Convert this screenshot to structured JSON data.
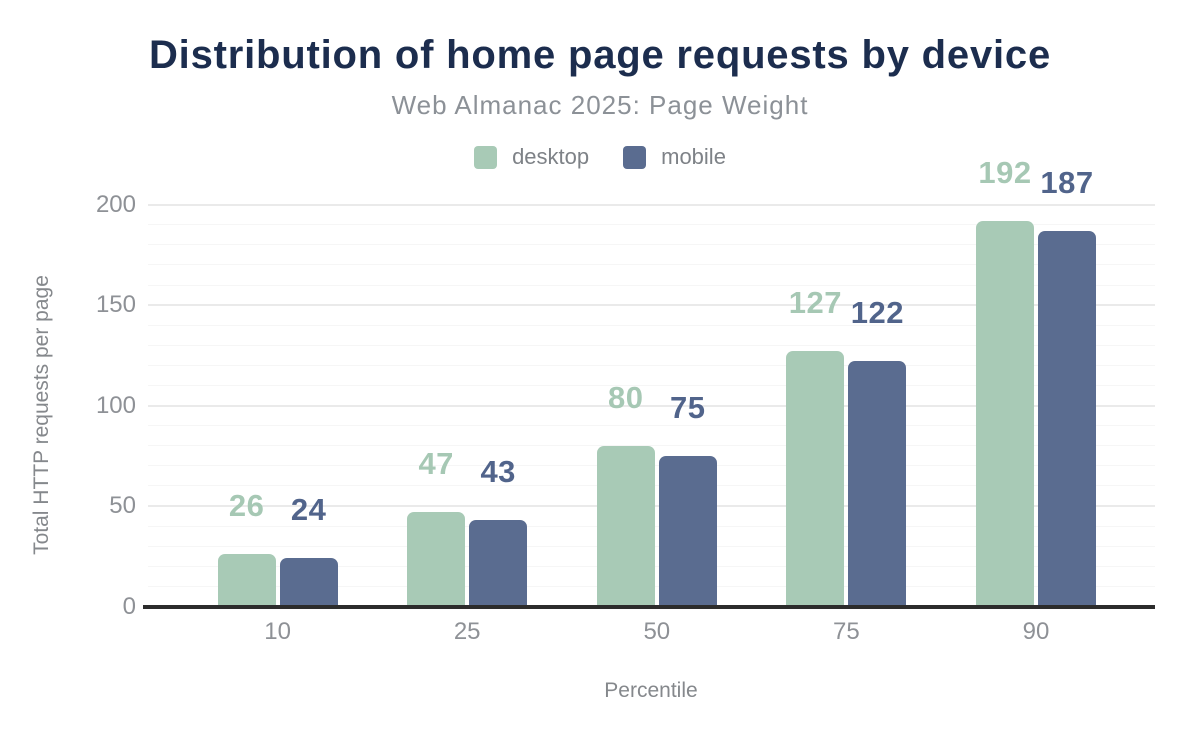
{
  "chart_data": {
    "type": "bar",
    "title": "Distribution of home page requests by device",
    "subtitle": "Web Almanac 2025: Page Weight",
    "xlabel": "Percentile",
    "ylabel": "Total HTTP requests per page",
    "categories": [
      "10",
      "25",
      "50",
      "75",
      "90"
    ],
    "series": [
      {
        "name": "desktop",
        "color": "#a8cab6",
        "label_color": "#a6c8b4",
        "values": [
          26,
          47,
          80,
          127,
          192
        ]
      },
      {
        "name": "mobile",
        "color": "#5a6c90",
        "label_color": "#51648b",
        "values": [
          24,
          43,
          75,
          122,
          187
        ]
      }
    ],
    "y_ticks": [
      0,
      50,
      100,
      150,
      200
    ],
    "ylim": [
      0,
      200
    ],
    "grid": {
      "minor_step": 10,
      "major_step": 50
    },
    "legend_position": "top",
    "value_labels": true
  },
  "colors": {
    "title": "#1c2d4e",
    "subtitle": "#8c9197",
    "legend_text": "#7e8287",
    "axis_tick_text": "#8e9196",
    "axis_title_text": "#85888c",
    "axis_line": "#2c2c2c",
    "grid_major": "#eaeaea",
    "grid_minor": "#f6f6f6",
    "background": "#ffffff"
  }
}
